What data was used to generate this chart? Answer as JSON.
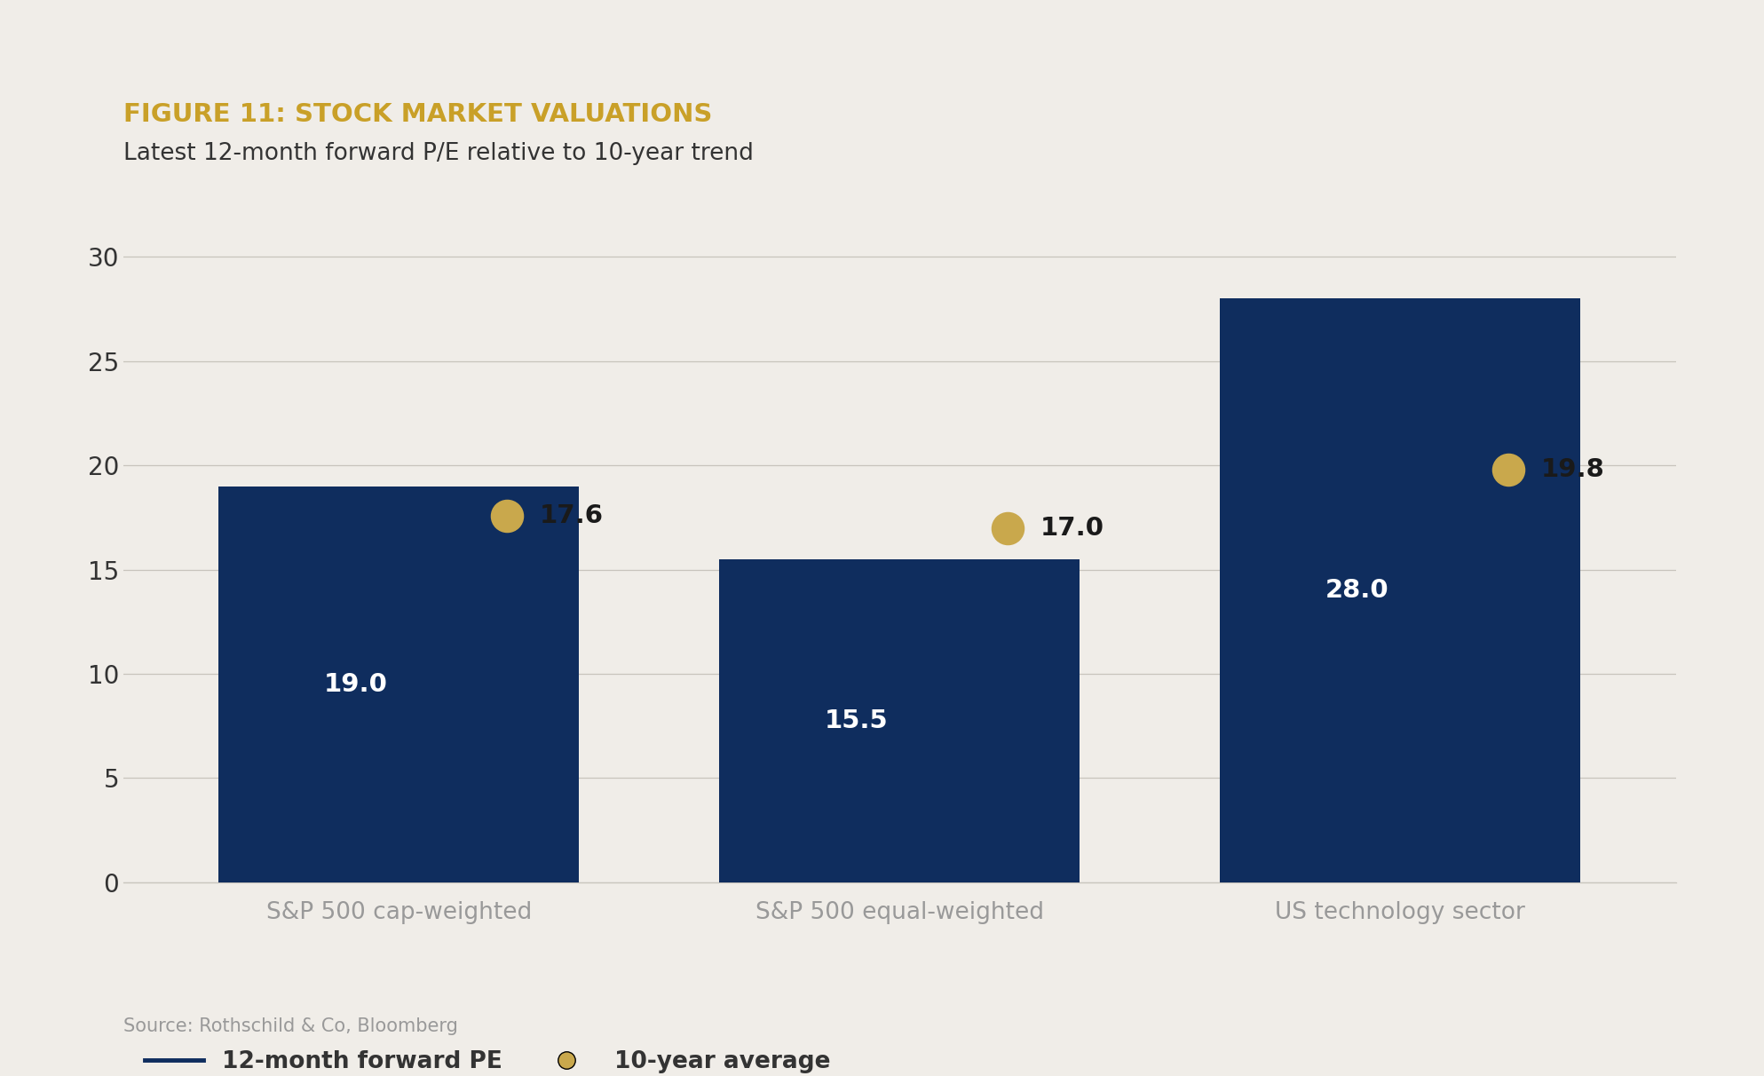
{
  "title": "FIGURE 11: STOCK MARKET VALUATIONS",
  "subtitle": "Latest 12-month forward P/E relative to 10-year trend",
  "categories": [
    "S&P 500 cap-weighted",
    "S&P 500 equal-weighted",
    "US technology sector"
  ],
  "bar_values": [
    19.0,
    15.5,
    28.0
  ],
  "dot_values": [
    17.6,
    17.0,
    19.8
  ],
  "bar_color": "#0f2d5e",
  "dot_color": "#c9a84c",
  "background_color": "#f0ede8",
  "ylim": [
    0,
    32
  ],
  "yticks": [
    0,
    5,
    10,
    15,
    20,
    25,
    30
  ],
  "bar_label_color": "#ffffff",
  "dot_label_color": "#1a1a1a",
  "title_color": "#c9a028",
  "subtitle_color": "#333333",
  "source_text": "Source: Rothschild & Co, Bloomberg",
  "legend_bar_label": "12-month forward PE",
  "legend_dot_label": "10-year average",
  "grid_color": "#c8c4bc",
  "tick_label_color": "#333333",
  "xtick_color": "#999999",
  "bar_width": 0.72
}
